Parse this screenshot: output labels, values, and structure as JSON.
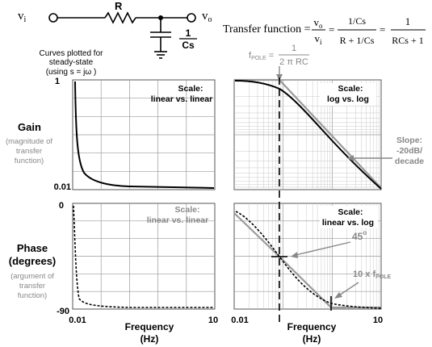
{
  "circuit": {
    "vi": "v",
    "vi_sub": "i",
    "vo": "v",
    "vo_sub": "o",
    "resistor": "R",
    "cap_num": "1",
    "cap_den": "Cs"
  },
  "transfer": {
    "label": "Transfer function =",
    "frac1_num": "v",
    "frac1_num_sub": "o",
    "frac1_den": "v",
    "frac1_den_sub": "i",
    "eq1": "=",
    "frac2_num": "1/Cs",
    "frac2_den": "R + 1/Cs",
    "eq2": "=",
    "frac3_num": "1",
    "frac3_den": "RCs + 1"
  },
  "note": {
    "line1": "Curves plotted for",
    "line2": "steady-state",
    "line3": "(using  s = jω )"
  },
  "fpole": {
    "label": "f",
    "sub": "POLE",
    "eq": "=",
    "num": "1",
    "den": "2 π RC"
  },
  "gain": {
    "title": "Gain",
    "sub1": "(magnitude of",
    "sub2": "transfer",
    "sub3": "function)",
    "ytop": "1",
    "ybottom": "0.01"
  },
  "phase": {
    "title": "Phase",
    "title2": "(degrees)",
    "sub1": "(argument of",
    "sub2": "transfer",
    "sub3": "function)",
    "ytop": "0",
    "ybottom": "-90"
  },
  "panels": {
    "gain_lin_scale": "Scale:",
    "gain_lin_desc": "linear vs. linear",
    "gain_log_scale": "Scale:",
    "gain_log_desc": "log vs. log",
    "phase_lin_scale": "Scale:",
    "phase_lin_desc": "linear vs. linear",
    "phase_log_scale": "Scale:",
    "phase_log_desc": "linear vs. log"
  },
  "annotations": {
    "slope1": "Slope:",
    "slope2": "-20dB/",
    "slope3": "decade",
    "angle": "45",
    "angle_deg": "o",
    "tenx": "10 x f",
    "tenx_sub": "POLE"
  },
  "xaxis": {
    "left_min": "0.01",
    "left_max": "10",
    "right_min": "0.01",
    "right_max": "10",
    "label1": "Frequency",
    "label2": "(Hz)"
  },
  "colors": {
    "grid_major": "#9a9a9a",
    "grid_minor": "#c8c8c8",
    "grey_annotation": "#888888",
    "curve": "#000000"
  }
}
